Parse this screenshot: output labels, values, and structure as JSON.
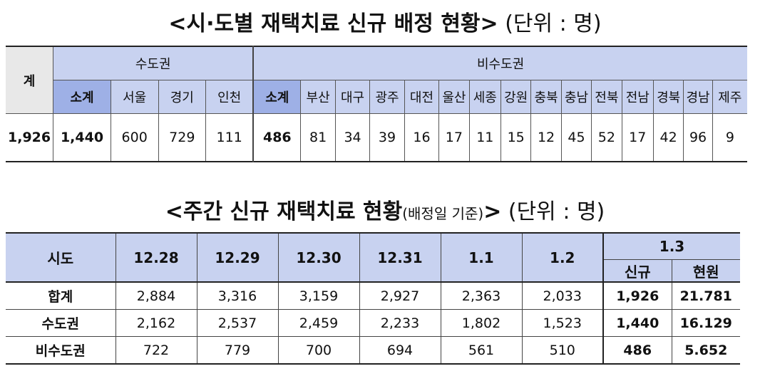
{
  "table1": {
    "title": "<시·도별 재택치료 신규 배정 현황>",
    "unit": "(단위 : 명)",
    "total_header": "계",
    "capital_header": "수도권",
    "noncapital_header": "비수도권",
    "capital_cols": [
      "소계",
      "서울",
      "경기",
      "인천"
    ],
    "noncapital_cols": [
      "소계",
      "부산",
      "대구",
      "광주",
      "대전",
      "울산",
      "세종",
      "강원",
      "충북",
      "충남",
      "전북",
      "전남",
      "경북",
      "경남",
      "제주"
    ],
    "total_value": "1,926",
    "capital_values": [
      "1,440",
      "600",
      "729",
      "111"
    ],
    "noncapital_values": [
      "486",
      "81",
      "34",
      "39",
      "16",
      "17",
      "11",
      "15",
      "12",
      "45",
      "52",
      "17",
      "42",
      "96",
      "9"
    ]
  },
  "table2": {
    "title_main": "<주간 신규 재택치료 현황",
    "title_paren": "(배정일 기준)",
    "title_close": ">",
    "unit": "(단위 : 명)",
    "row_header": "시도",
    "dates": [
      "12.28",
      "12.29",
      "12.30",
      "12.31",
      "1.1",
      "1.2"
    ],
    "last_date": "1.3",
    "last_sub": [
      "신규",
      "현원"
    ],
    "rows": [
      {
        "label": "합계",
        "values": [
          "2,884",
          "3,316",
          "3,159",
          "2,927",
          "2,363",
          "2,033"
        ],
        "new": "1,926",
        "current": "21.781"
      },
      {
        "label": "수도권",
        "values": [
          "2,162",
          "2,537",
          "2,459",
          "2,233",
          "1,802",
          "1,523"
        ],
        "new": "1,440",
        "current": "16.129"
      },
      {
        "label": "비수도권",
        "values": [
          "722",
          "779",
          "700",
          "694",
          "561",
          "510"
        ],
        "new": "486",
        "current": "5.652"
      }
    ]
  }
}
